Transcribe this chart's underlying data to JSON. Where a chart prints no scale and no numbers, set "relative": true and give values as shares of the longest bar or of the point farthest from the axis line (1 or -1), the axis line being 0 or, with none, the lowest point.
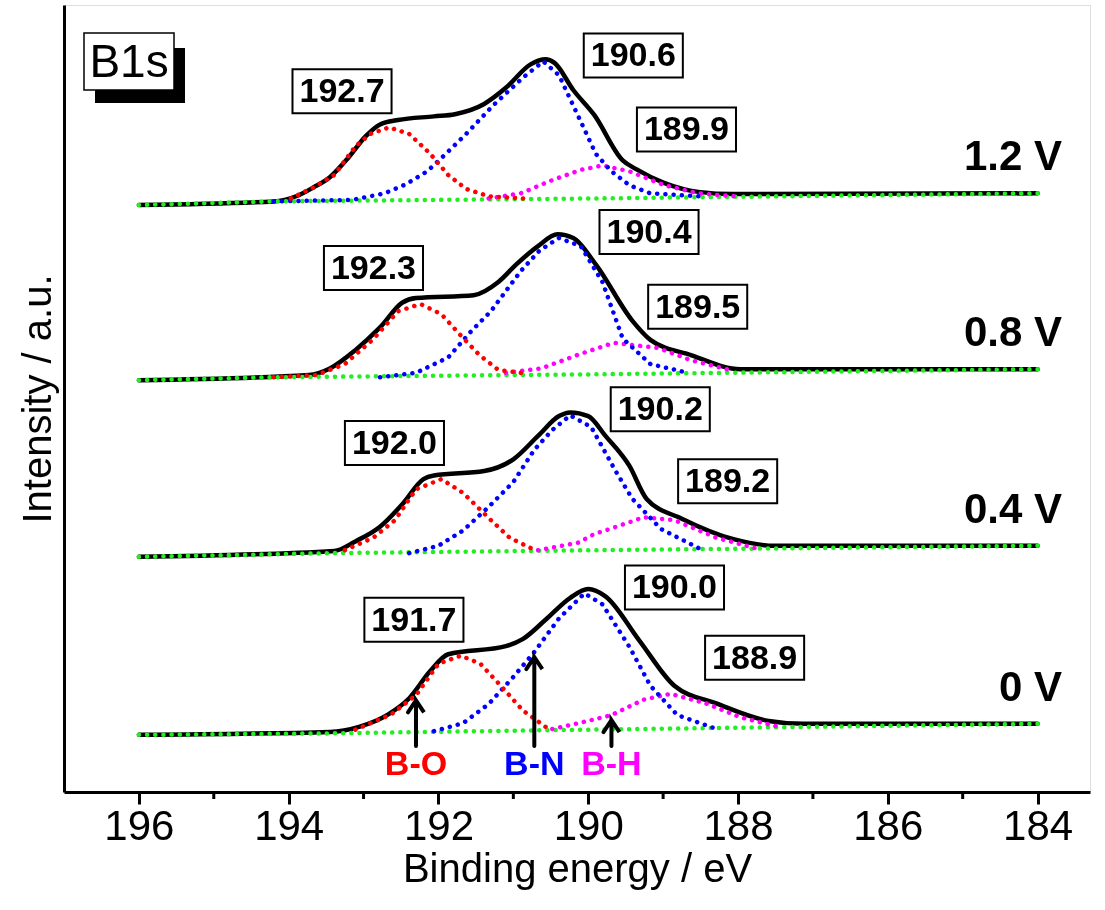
{
  "chart_data": {
    "type": "line",
    "relative": true,
    "title": "B1s",
    "xlabel": "Binding energy / eV",
    "ylabel": "Intensity / a.u.",
    "tick_labels": "x",
    "xlim": [
      197,
      183.3
    ],
    "xticks": [
      196,
      {
        "value": 195,
        "label": null
      },
      194,
      {
        "value": 193,
        "label": null
      },
      192,
      {
        "value": 191,
        "label": null
      },
      190,
      {
        "value": 189,
        "label": null
      },
      188,
      {
        "value": 187,
        "label": null
      },
      186,
      {
        "value": 185,
        "label": null
      },
      184
    ],
    "series": [
      {
        "color": "#000000",
        "line_style": "solid",
        "x": [
          196.0,
          194.2,
          193.9,
          193.67,
          193.45,
          193.2,
          192.97,
          192.78,
          192.54,
          192.06,
          191.78,
          191.39,
          191.1,
          190.77,
          190.57,
          190.45,
          190.2,
          189.92,
          189.54,
          189.36,
          188.98,
          188.53,
          188.06,
          184.0
        ],
        "values": [
          0.801,
          0.806,
          0.813,
          0.825,
          0.839,
          0.866,
          0.895,
          0.911,
          0.917,
          0.922,
          0.925,
          0.939,
          0.961,
          0.993,
          1.0,
          0.995,
          0.958,
          0.924,
          0.862,
          0.85,
          0.831,
          0.819,
          0.816,
          0.817
        ]
      },
      {
        "color": "#ff0000",
        "line_style": "dotted",
        "x": [
          193.97,
          193.67,
          193.39,
          193.11,
          192.91,
          192.66,
          192.39,
          192.11,
          191.87,
          191.63,
          191.33,
          190.87
        ],
        "values": [
          0.81,
          0.825,
          0.842,
          0.881,
          0.898,
          0.907,
          0.898,
          0.871,
          0.842,
          0.823,
          0.813,
          0.81
        ]
      },
      {
        "color": "#0000ff",
        "line_style": "dotted",
        "x": [
          194.2,
          193.15,
          192.72,
          192.44,
          192.15,
          191.9,
          191.63,
          191.27,
          190.87,
          190.6,
          190.39,
          190.1,
          189.9,
          189.69,
          189.45,
          189.17,
          188.53
        ],
        "values": [
          0.806,
          0.808,
          0.817,
          0.829,
          0.847,
          0.871,
          0.898,
          0.937,
          0.975,
          0.997,
          0.978,
          0.915,
          0.871,
          0.847,
          0.828,
          0.817,
          0.813
        ]
      },
      {
        "color": "#ff00ff",
        "line_style": "dotted",
        "x": [
          191.33,
          190.9,
          190.48,
          190.1,
          189.81,
          189.45,
          188.98,
          188.53,
          188.06
        ],
        "values": [
          0.81,
          0.817,
          0.835,
          0.849,
          0.855,
          0.847,
          0.828,
          0.817,
          0.813
        ]
      },
      {
        "color": "#22ee22",
        "line_style": "dotted",
        "x": [
          196.0,
          194.2,
          189.9,
          184.0
        ],
        "values": [
          0.801,
          0.806,
          0.81,
          0.817
        ]
      },
      {
        "color": "#000000",
        "line_style": "solid",
        "x": [
          196.0,
          193.73,
          193.45,
          193.11,
          192.78,
          192.48,
          192.3,
          191.53,
          191.2,
          190.96,
          190.67,
          190.41,
          190.2,
          189.9,
          189.41,
          189.17,
          188.62,
          187.97,
          184.0
        ],
        "values": [
          0.562,
          0.569,
          0.578,
          0.603,
          0.634,
          0.668,
          0.674,
          0.678,
          0.696,
          0.72,
          0.745,
          0.761,
          0.756,
          0.72,
          0.643,
          0.617,
          0.596,
          0.577,
          0.577
        ]
      },
      {
        "color": "#ff0000",
        "line_style": "dotted",
        "x": [
          194.2,
          193.63,
          193.25,
          192.87,
          192.54,
          192.24,
          191.96,
          191.72,
          191.45,
          191.2,
          190.9
        ],
        "values": [
          0.566,
          0.569,
          0.584,
          0.618,
          0.656,
          0.666,
          0.652,
          0.625,
          0.596,
          0.576,
          0.572
        ]
      },
      {
        "color": "#0000ff",
        "line_style": "dotted",
        "x": [
          192.78,
          192.3,
          191.87,
          191.57,
          191.3,
          190.9,
          190.65,
          190.39,
          190.1,
          189.81,
          189.54,
          189.17,
          188.75
        ],
        "values": [
          0.566,
          0.572,
          0.593,
          0.628,
          0.656,
          0.711,
          0.739,
          0.756,
          0.745,
          0.696,
          0.619,
          0.584,
          0.574
        ]
      },
      {
        "color": "#ff00ff",
        "line_style": "dotted",
        "x": [
          191.1,
          190.63,
          190.1,
          189.66,
          189.07,
          188.62,
          188.15
        ],
        "values": [
          0.572,
          0.578,
          0.598,
          0.613,
          0.606,
          0.589,
          0.577
        ]
      },
      {
        "color": "#22ee22",
        "line_style": "dotted",
        "x": [
          196.0,
          194.2,
          189.9,
          184.0
        ],
        "values": [
          0.562,
          0.566,
          0.57,
          0.577
        ]
      },
      {
        "color": "#000000",
        "line_style": "solid",
        "x": [
          196.0,
          193.39,
          193.11,
          192.78,
          192.48,
          192.2,
          192.06,
          191.39,
          191.0,
          190.67,
          190.39,
          190.24,
          190.0,
          189.77,
          189.45,
          189.22,
          188.75,
          188.06,
          187.5,
          184.0
        ],
        "values": [
          0.321,
          0.329,
          0.342,
          0.362,
          0.393,
          0.427,
          0.432,
          0.438,
          0.454,
          0.486,
          0.513,
          0.518,
          0.513,
          0.486,
          0.445,
          0.4,
          0.373,
          0.345,
          0.336,
          0.336
        ]
      },
      {
        "color": "#ff0000",
        "line_style": "dotted",
        "x": [
          193.25,
          192.87,
          192.58,
          192.3,
          191.96,
          191.67,
          191.33,
          191.05,
          190.77
        ],
        "values": [
          0.33,
          0.347,
          0.371,
          0.413,
          0.427,
          0.408,
          0.374,
          0.347,
          0.333
        ]
      },
      {
        "color": "#0000ff",
        "line_style": "dotted",
        "x": [
          192.39,
          192.0,
          191.67,
          191.33,
          191.0,
          190.72,
          190.48,
          190.24,
          189.96,
          189.64,
          189.41,
          189.03,
          188.53
        ],
        "values": [
          0.326,
          0.336,
          0.357,
          0.389,
          0.423,
          0.467,
          0.494,
          0.514,
          0.498,
          0.439,
          0.4,
          0.359,
          0.333
        ]
      },
      {
        "color": "#ff00ff",
        "line_style": "dotted",
        "x": [
          190.67,
          190.14,
          189.92,
          189.71,
          189.26,
          188.85,
          188.29,
          187.78
        ],
        "values": [
          0.33,
          0.34,
          0.352,
          0.359,
          0.375,
          0.371,
          0.347,
          0.333
        ]
      },
      {
        "color": "#22ee22",
        "line_style": "dotted",
        "x": [
          196.0,
          193.39,
          189.9,
          184.0
        ],
        "values": [
          0.321,
          0.326,
          0.33,
          0.336
        ]
      },
      {
        "color": "#000000",
        "line_style": "solid",
        "x": [
          196.0,
          193.45,
          193.06,
          192.67,
          192.39,
          192.11,
          191.87,
          191.1,
          190.87,
          190.57,
          190.24,
          190.0,
          189.77,
          189.32,
          188.85,
          188.29,
          187.59,
          187.12,
          184.0
        ],
        "values": [
          0.078,
          0.082,
          0.089,
          0.106,
          0.128,
          0.165,
          0.188,
          0.199,
          0.209,
          0.235,
          0.265,
          0.277,
          0.267,
          0.207,
          0.145,
          0.121,
          0.097,
          0.093,
          0.093
        ]
      },
      {
        "name": "B-O",
        "color": "#ff0000",
        "line_style": "dotted",
        "x": [
          193.11,
          192.63,
          192.3,
          192.0,
          191.7,
          191.44,
          191.15,
          190.87,
          190.57
        ],
        "values": [
          0.085,
          0.106,
          0.132,
          0.175,
          0.186,
          0.175,
          0.143,
          0.111,
          0.089
        ]
      },
      {
        "name": "B-N",
        "color": "#0000ff",
        "line_style": "dotted",
        "x": [
          192.06,
          191.67,
          191.33,
          191.0,
          190.72,
          190.39,
          190.05,
          189.81,
          189.45,
          189.17,
          188.81,
          188.34
        ],
        "values": [
          0.083,
          0.094,
          0.12,
          0.157,
          0.191,
          0.237,
          0.271,
          0.256,
          0.198,
          0.145,
          0.105,
          0.088
        ]
      },
      {
        "name": "B-H",
        "color": "#ff00ff",
        "line_style": "dotted",
        "x": [
          190.48,
          190.0,
          189.69,
          189.26,
          188.9,
          188.43,
          187.97,
          187.5
        ],
        "values": [
          0.086,
          0.097,
          0.105,
          0.126,
          0.134,
          0.121,
          0.102,
          0.09
        ]
      },
      {
        "color": "#22ee22",
        "line_style": "dotted",
        "x": [
          196.0,
          193.45,
          190.8,
          184.0
        ],
        "values": [
          0.078,
          0.08,
          0.084,
          0.093
        ]
      }
    ],
    "annotations": [
      "192.7",
      "190.6",
      "189.9",
      "192.3",
      "190.4",
      "189.5",
      "192.0",
      "190.2",
      "189.2",
      "191.7",
      "190.0",
      "188.9",
      "1.2 V",
      "0.8 V",
      "0.4 V",
      "0 V"
    ]
  }
}
